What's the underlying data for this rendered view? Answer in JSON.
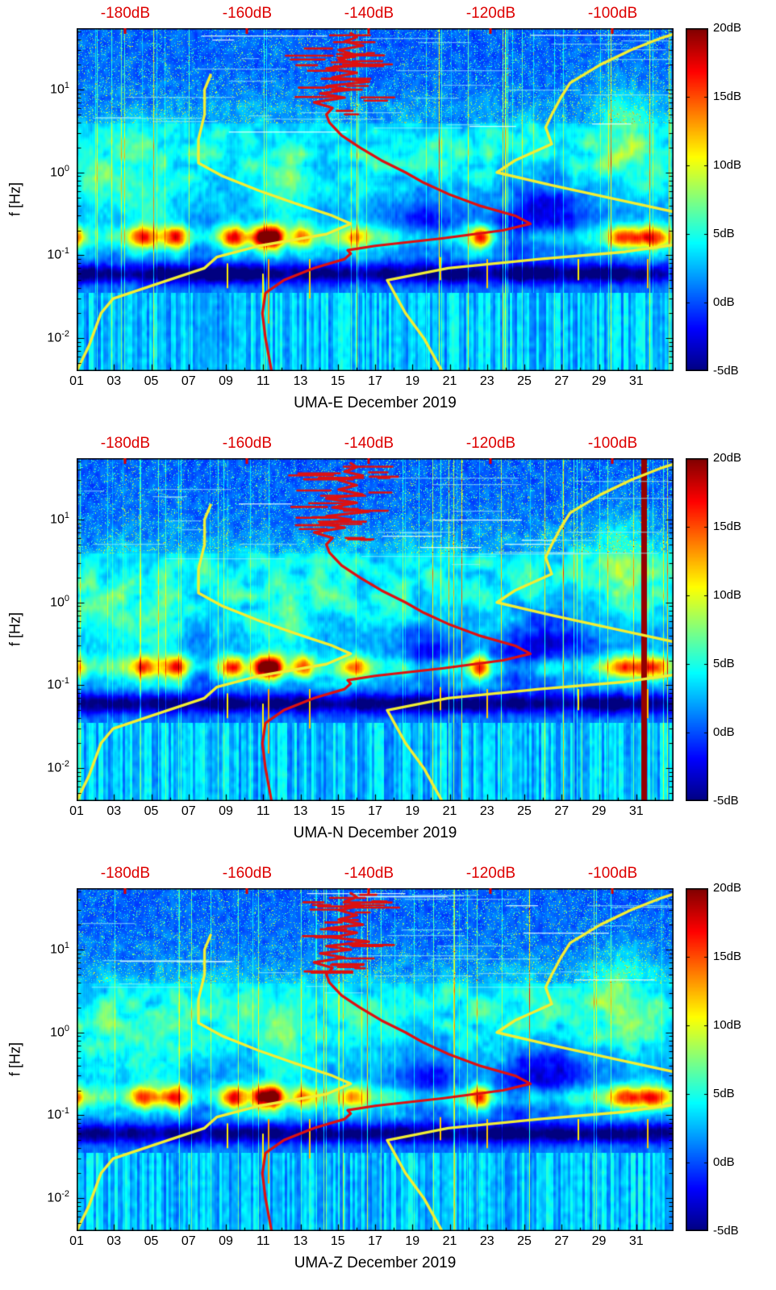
{
  "figure": {
    "y_label": "f [Hz]",
    "x_ticks": [
      "01",
      "03",
      "05",
      "07",
      "09",
      "11",
      "13",
      "15",
      "17",
      "19",
      "21",
      "23",
      "25",
      "27",
      "29",
      "31"
    ],
    "y_ticks": [
      {
        "base": "10",
        "exp": "1"
      },
      {
        "base": "10",
        "exp": "0"
      },
      {
        "base": "10",
        "exp": "-1"
      },
      {
        "base": "10",
        "exp": "-2"
      }
    ],
    "top_axis_ticks": [
      "-180dB",
      "-160dB",
      "-140dB",
      "-120dB",
      "-100dB"
    ],
    "colorbar_ticks": [
      "20dB",
      "15dB",
      "10dB",
      "5dB",
      "0dB",
      "-5dB"
    ]
  },
  "panels": [
    {
      "component": "E",
      "title": "UMA-E December 2019"
    },
    {
      "component": "N",
      "title": "UMA-N December 2019"
    },
    {
      "component": "Z",
      "title": "UMA-Z December 2019"
    }
  ],
  "chart_data": {
    "type": "heatmap",
    "subtype": "seismic-ambient-noise-spectrogram",
    "station": "UMA",
    "components": [
      "E",
      "N",
      "Z"
    ],
    "period": "December 2019",
    "x_axis": {
      "unit": "day of month",
      "range": [
        1,
        33
      ],
      "tick_days": [
        1,
        3,
        5,
        7,
        9,
        11,
        13,
        15,
        17,
        19,
        21,
        23,
        25,
        27,
        29,
        31
      ]
    },
    "y_axis": {
      "label": "f [Hz]",
      "scale": "log",
      "range_hz": [
        0.004,
        55
      ],
      "tick_exponents": [
        1,
        0,
        -1,
        -2
      ]
    },
    "color_scale": {
      "colormap": "jet",
      "unit": "dB",
      "range_db": [
        -5,
        20
      ],
      "ticks_db": [
        20,
        15,
        10,
        5,
        0,
        -5
      ]
    },
    "top_axis": {
      "unit": "dB (PSD)",
      "color": "#dd0000",
      "range_db": [
        -188,
        -90
      ],
      "ticks_db": [
        -180,
        -160,
        -140,
        -120,
        -100
      ]
    },
    "overlays": {
      "noise_model_low": {
        "color": "#f2ee35",
        "points": [
          [
            0.004,
            -188
          ],
          [
            0.008,
            -186
          ],
          [
            0.02,
            -184
          ],
          [
            0.03,
            -182
          ],
          [
            0.05,
            -173
          ],
          [
            0.07,
            -167
          ],
          [
            0.095,
            -165
          ],
          [
            0.13,
            -158
          ],
          [
            0.18,
            -147
          ],
          [
            0.24,
            -143
          ],
          [
            0.3,
            -146
          ],
          [
            0.42,
            -152
          ],
          [
            0.6,
            -158
          ],
          [
            0.9,
            -164
          ],
          [
            1.3,
            -168
          ],
          [
            2.5,
            -168
          ],
          [
            5,
            -167
          ],
          [
            10,
            -167
          ],
          [
            15,
            -166
          ]
        ]
      },
      "noise_model_high": {
        "color": "#f2ee35",
        "points": [
          [
            0.004,
            -128
          ],
          [
            0.01,
            -131
          ],
          [
            0.02,
            -134
          ],
          [
            0.05,
            -137
          ],
          [
            0.07,
            -127
          ],
          [
            0.09,
            -112
          ],
          [
            0.11,
            -98
          ],
          [
            0.14,
            -88
          ],
          [
            0.3,
            -87
          ],
          [
            0.45,
            -98
          ],
          [
            0.7,
            -110
          ],
          [
            1,
            -119
          ],
          [
            1.4,
            -116
          ],
          [
            2.2,
            -110
          ],
          [
            3.5,
            -111
          ],
          [
            5,
            -110
          ],
          [
            8,
            -108.5
          ],
          [
            12,
            -107
          ],
          [
            20,
            -102
          ],
          [
            30,
            -97
          ],
          [
            42,
            -92
          ],
          [
            52,
            -88
          ]
        ]
      },
      "station_psd_mode": {
        "color": "#dd1111",
        "points": [
          [
            0.004,
            -156
          ],
          [
            0.01,
            -157
          ],
          [
            0.02,
            -157.5
          ],
          [
            0.035,
            -157
          ],
          [
            0.05,
            -154
          ],
          [
            0.07,
            -149
          ],
          [
            0.09,
            -144
          ],
          [
            0.105,
            -143
          ],
          [
            0.115,
            -143.5
          ],
          [
            0.13,
            -139
          ],
          [
            0.16,
            -128
          ],
          [
            0.2,
            -118
          ],
          [
            0.24,
            -113.5
          ],
          [
            0.3,
            -116
          ],
          [
            0.4,
            -122
          ],
          [
            0.55,
            -127
          ],
          [
            0.75,
            -131
          ],
          [
            1,
            -134
          ],
          [
            1.4,
            -138
          ],
          [
            2,
            -141.5
          ],
          [
            2.8,
            -144.5
          ],
          [
            4,
            -146.5
          ],
          [
            5,
            -147
          ],
          [
            6,
            -146
          ],
          [
            7,
            -149
          ],
          [
            8,
            -144
          ],
          [
            9,
            -148
          ],
          [
            10,
            -143
          ],
          [
            11,
            -147
          ],
          [
            12.5,
            -140
          ],
          [
            14,
            -146
          ],
          [
            16,
            -142
          ],
          [
            18,
            -147
          ],
          [
            20,
            -141
          ],
          [
            23,
            -145
          ],
          [
            26,
            -142
          ],
          [
            30,
            -145
          ],
          [
            34,
            -141
          ],
          [
            38,
            -144
          ],
          [
            43,
            -142
          ],
          [
            48,
            -143
          ]
        ],
        "scatter_band": {
          "f_range": [
            5,
            46
          ],
          "db_center": -144,
          "db_spread": 6.5,
          "strokes": 26
        }
      }
    },
    "features": {
      "microseism_hotspots": [
        {
          "day": 0.9,
          "strength": 8,
          "width": 0.5
        },
        {
          "day": 4.6,
          "strength": 10,
          "width": 0.7
        },
        {
          "day": 6.3,
          "strength": 11,
          "width": 0.6
        },
        {
          "day": 9.4,
          "strength": 11,
          "width": 0.6
        },
        {
          "day": 10.9,
          "strength": 14,
          "width": 0.5
        },
        {
          "day": 11.6,
          "strength": 15,
          "width": 0.45
        },
        {
          "day": 13.1,
          "strength": 8,
          "width": 0.6
        },
        {
          "day": 15.9,
          "strength": 7,
          "width": 0.7
        },
        {
          "day": 22.6,
          "strength": 12,
          "width": 0.5
        },
        {
          "day": 30.3,
          "strength": 9,
          "width": 0.8
        },
        {
          "day": 31.8,
          "strength": 10,
          "width": 0.9
        }
      ],
      "blobs": [
        {
          "day": 19.8,
          "lf": -0.62,
          "w": 1.6,
          "h": 0.35,
          "amp": -4.5
        },
        {
          "day": 26.2,
          "lf": -0.5,
          "w": 2.2,
          "h": 0.45,
          "amp": -5
        },
        {
          "day": 24.2,
          "lf": -0.78,
          "w": 1.2,
          "h": 0.25,
          "amp": -3.5
        },
        {
          "day": 7.7,
          "lf": -0.85,
          "w": 0.8,
          "h": 0.2,
          "amp": -3
        },
        {
          "day": 30.2,
          "lf": 0.55,
          "w": 1.6,
          "h": 0.55,
          "amp": 3.5
        },
        {
          "day": 2.6,
          "lf": -0.2,
          "w": 1.5,
          "h": 0.45,
          "amp": 2.5
        },
        {
          "day": 12.1,
          "lf": -0.3,
          "w": 1.3,
          "h": 0.4,
          "amp": 3
        },
        {
          "day": 5.2,
          "lf": -0.45,
          "w": 1.2,
          "h": 0.35,
          "amp": 2.5
        }
      ],
      "bottom_spikes": [
        {
          "day": 9.1,
          "f1": 0.04,
          "f2": 0.08,
          "v": 11
        },
        {
          "day": 11.0,
          "f1": 0.02,
          "f2": 0.06,
          "v": 11
        },
        {
          "day": 11.3,
          "f1": 0.015,
          "f2": 0.09,
          "v": 13
        },
        {
          "day": 13.5,
          "f1": 0.03,
          "f2": 0.09,
          "v": 12
        },
        {
          "day": 20.5,
          "f1": 0.05,
          "f2": 0.095,
          "v": 12
        },
        {
          "day": 23.0,
          "f1": 0.04,
          "f2": 0.09,
          "v": 12
        },
        {
          "day": 27.9,
          "f1": 0.05,
          "f2": 0.09,
          "v": 11
        },
        {
          "day": 31.6,
          "f1": 0.04,
          "f2": 0.09,
          "v": 12
        }
      ],
      "panel_specific": {
        "N": {
          "red_stripe_day": 31.4
        }
      }
    }
  }
}
